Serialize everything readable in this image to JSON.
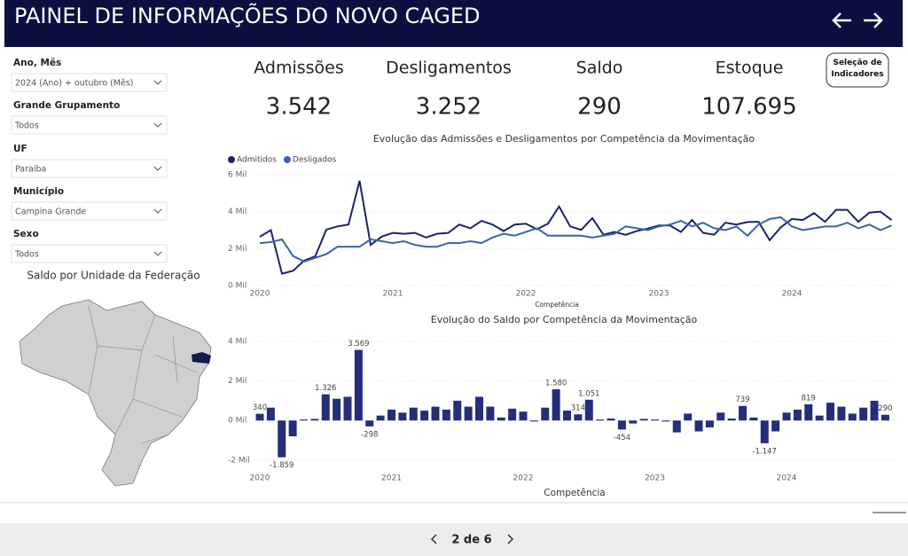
{
  "header": {
    "title": "PAINEL DE INFORMAÇÕES DO NOVO CAGED"
  },
  "filters": [
    {
      "label": "Ano, Mês",
      "value": "2024 (Ano) + outubro (Mês)"
    },
    {
      "label": "Grande Grupamento",
      "value": "Todos"
    },
    {
      "label": "UF",
      "value": "Paraíba"
    },
    {
      "label": "Município",
      "value": "Campina Grande"
    },
    {
      "label": "Sexo",
      "value": "Todos"
    }
  ],
  "map_title": "Saldo por Unidade da Federação",
  "kpis": [
    {
      "label": "Admissões",
      "value": "3.542"
    },
    {
      "label": "Desligamentos",
      "value": "3.252"
    },
    {
      "label": "Saldo",
      "value": "290"
    },
    {
      "label": "Estoque",
      "value": "107.695"
    }
  ],
  "button": "Seleção de Indicadores",
  "pager": "2 de 6",
  "chart_data": [
    {
      "type": "line",
      "title": "Evolução das Admissões e Desligamentos por Competência da Movimentação",
      "xlabel": "Competência",
      "categories": [
        "2020",
        null,
        null,
        null,
        null,
        null,
        null,
        null,
        null,
        null,
        null,
        null,
        "2021",
        null,
        null,
        null,
        null,
        null,
        null,
        null,
        null,
        null,
        null,
        null,
        "2022",
        null,
        null,
        null,
        null,
        null,
        null,
        null,
        null,
        null,
        null,
        null,
        "2023",
        null,
        null,
        null,
        null,
        null,
        null,
        null,
        null,
        null,
        null,
        null,
        "2024",
        null,
        null,
        null,
        null,
        null,
        null,
        null,
        null,
        null
      ],
      "series": [
        {
          "name": "Admitidos",
          "color": "#1c2566",
          "values": [
            2640,
            3000,
            641,
            800,
            1350,
            1580,
            3026,
            3200,
            3300,
            5669,
            2202,
            2650,
            2850,
            2800,
            2850,
            2600,
            2800,
            2850,
            3300,
            3100,
            3500,
            3300,
            2950,
            3300,
            3350,
            3050,
            3350,
            4280,
            3200,
            3014,
            3651,
            2750,
            2900,
            2746,
            2950,
            3080,
            3250,
            3250,
            2900,
            3550,
            2850,
            2750,
            3400,
            3300,
            3439,
            3450,
            2453,
            3150,
            3600,
            3550,
            3919,
            3450,
            4100,
            4100,
            3450,
            3950,
            4000,
            3542
          ]
        },
        {
          "name": "Desligados",
          "color": "#3b63a6",
          "values": [
            2300,
            2350,
            2500,
            1600,
            1300,
            1500,
            1700,
            2100,
            2100,
            2100,
            2500,
            2400,
            2300,
            2400,
            2200,
            2100,
            2100,
            2300,
            2300,
            2400,
            2300,
            2600,
            2800,
            2700,
            2900,
            3100,
            2700,
            2700,
            2700,
            2700,
            2600,
            2700,
            2800,
            3200,
            3100,
            3000,
            3200,
            3300,
            3500,
            3200,
            3400,
            3100,
            3000,
            3200,
            2700,
            3300,
            3600,
            3700,
            3200,
            3000,
            3100,
            3200,
            3200,
            3400,
            3100,
            3300,
            3000,
            3252
          ]
        }
      ],
      "ylim": [
        0,
        6000
      ],
      "yticks": [
        {
          "value": 0,
          "label": "0 Mil"
        },
        {
          "value": 2000,
          "label": "2 Mil"
        },
        {
          "value": 4000,
          "label": "4 Mil"
        },
        {
          "value": 6000,
          "label": "6 Mil"
        }
      ],
      "grid": true
    },
    {
      "type": "bar",
      "title": "Evolução do Saldo por Competência da Movimentação",
      "xlabel": "Competência",
      "color": "#252e7a",
      "categories": [
        "2020",
        null,
        null,
        null,
        null,
        null,
        null,
        null,
        null,
        null,
        null,
        null,
        "2021",
        null,
        null,
        null,
        null,
        null,
        null,
        null,
        null,
        null,
        null,
        null,
        "2022",
        null,
        null,
        null,
        null,
        null,
        null,
        null,
        null,
        null,
        null,
        null,
        "2023",
        null,
        null,
        null,
        null,
        null,
        null,
        null,
        null,
        null,
        null,
        null,
        "2024",
        null,
        null,
        null,
        null,
        null,
        null,
        null,
        null,
        null
      ],
      "values": [
        340,
        650,
        -1859,
        -800,
        50,
        80,
        1326,
        1100,
        1200,
        3569,
        -298,
        250,
        550,
        400,
        650,
        500,
        700,
        550,
        1000,
        700,
        1200,
        700,
        150,
        600,
        450,
        -50,
        650,
        1580,
        500,
        314,
        1051,
        50,
        100,
        -454,
        -150,
        80,
        50,
        -50,
        -600,
        350,
        -550,
        -350,
        400,
        100,
        739,
        150,
        -1147,
        -550,
        400,
        550,
        819,
        250,
        900,
        700,
        350,
        650,
        1000,
        290
      ],
      "value_labels": [
        "340",
        null,
        "-1.859",
        null,
        null,
        null,
        "1.326",
        null,
        null,
        "3.569",
        "-298",
        null,
        null,
        null,
        null,
        null,
        null,
        null,
        null,
        null,
        null,
        null,
        null,
        null,
        null,
        null,
        null,
        "1.580",
        null,
        "314",
        "1.051",
        null,
        null,
        "-454",
        null,
        null,
        null,
        null,
        null,
        null,
        null,
        null,
        null,
        null,
        "739",
        null,
        "-1.147",
        null,
        null,
        null,
        "819",
        null,
        null,
        null,
        null,
        null,
        null,
        "290"
      ],
      "ylim": [
        -2500,
        4200
      ],
      "yticks": [
        {
          "value": -2000,
          "label": "-2 Mil"
        },
        {
          "value": 0,
          "label": "0 Mil"
        },
        {
          "value": 2000,
          "label": "2 Mil"
        },
        {
          "value": 4000,
          "label": "4 Mil"
        }
      ],
      "grid": true
    }
  ]
}
